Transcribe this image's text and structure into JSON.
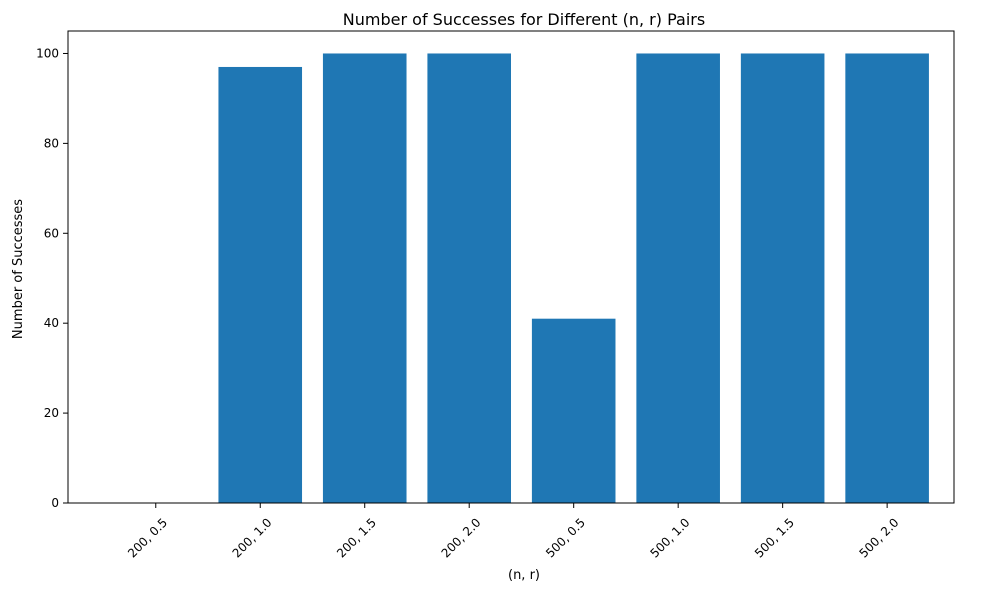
{
  "chart_data": {
    "type": "bar",
    "title": "Number of Successes for Different (n, r) Pairs",
    "xlabel": "(n, r)",
    "ylabel": "Number of Successes",
    "categories": [
      "200, 0.5",
      "200, 1.0",
      "200, 1.5",
      "200, 2.0",
      "500, 0.5",
      "500, 1.0",
      "500, 1.5",
      "500, 2.0"
    ],
    "values": [
      0,
      97,
      100,
      100,
      41,
      100,
      100,
      100
    ],
    "ylim": [
      0,
      105
    ],
    "yticks": [
      0,
      20,
      40,
      60,
      80,
      100
    ],
    "xtick_rotation_deg": 45,
    "grid": false,
    "legend": "none",
    "colors": {
      "bar": "#1f77b4",
      "axis": "#000000",
      "background": "#ffffff"
    }
  }
}
